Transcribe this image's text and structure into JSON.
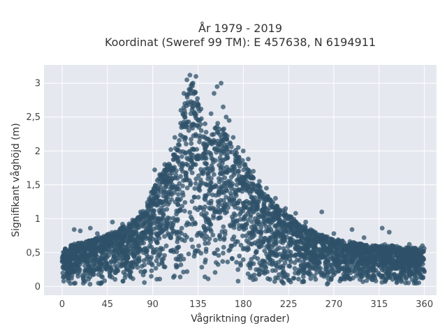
{
  "chart_data": {
    "type": "scatter",
    "title_line1": "År 1979 - 2019",
    "title_line2": "Koordinat (Sweref 99 TM): E 457638, N 6194911",
    "xlabel": "Vågriktning (grader)",
    "ylabel": "Signifikant våghöjd (m)",
    "xlim": [
      -18,
      372
    ],
    "ylim": [
      -0.13,
      3.27
    ],
    "xticks": [
      0,
      45,
      90,
      135,
      180,
      225,
      270,
      315,
      360
    ],
    "xtick_labels": [
      "0",
      "45",
      "90",
      "135",
      "180",
      "225",
      "270",
      "315",
      "360"
    ],
    "yticks": [
      0,
      0.5,
      1,
      1.5,
      2,
      2.5,
      3
    ],
    "ytick_labels": [
      "0",
      "0,5",
      "1",
      "1,5",
      "2",
      "2,5",
      "3"
    ],
    "grid": true,
    "plot_bgcolor": "#e5e8ef",
    "marker_color": "#2f5269",
    "envelope": {
      "x": [
        0,
        10,
        20,
        30,
        40,
        50,
        60,
        70,
        80,
        90,
        100,
        110,
        115,
        120,
        125,
        130,
        135,
        140,
        145,
        150,
        155,
        160,
        170,
        180,
        190,
        200,
        210,
        220,
        230,
        240,
        250,
        260,
        270,
        280,
        290,
        300,
        310,
        320,
        330,
        340,
        350,
        360
      ],
      "y_max": [
        0.55,
        0.62,
        0.65,
        0.7,
        0.75,
        0.8,
        0.88,
        0.95,
        1.1,
        1.45,
        1.7,
        1.95,
        2.25,
        2.6,
        2.9,
        3.05,
        2.8,
        2.4,
        2.2,
        2.3,
        2.45,
        2.35,
        2.1,
        1.85,
        1.6,
        1.4,
        1.25,
        1.12,
        1.0,
        0.9,
        0.82,
        0.75,
        0.7,
        0.68,
        0.65,
        0.62,
        0.6,
        0.62,
        0.6,
        0.58,
        0.57,
        0.58
      ],
      "y_min": 0.02
    },
    "points": [
      [
        12,
        0.84
      ],
      [
        18,
        0.82
      ],
      [
        28,
        0.86
      ],
      [
        35,
        0.78
      ],
      [
        50,
        0.95
      ],
      [
        60,
        0.92
      ],
      [
        70,
        0.98
      ],
      [
        78,
        1.1
      ],
      [
        85,
        1.2
      ],
      [
        92,
        1.72
      ],
      [
        97,
        1.65
      ],
      [
        102,
        1.8
      ],
      [
        108,
        2.02
      ],
      [
        112,
        2.2
      ],
      [
        118,
        2.6
      ],
      [
        121,
        2.85
      ],
      [
        124,
        3.05
      ],
      [
        127,
        3.12
      ],
      [
        130,
        3.0
      ],
      [
        133,
        3.1
      ],
      [
        138,
        2.62
      ],
      [
        142,
        2.4
      ],
      [
        148,
        2.55
      ],
      [
        151,
        2.85
      ],
      [
        154,
        2.95
      ],
      [
        158,
        3.0
      ],
      [
        160,
        2.65
      ],
      [
        163,
        2.5
      ],
      [
        166,
        2.45
      ],
      [
        170,
        2.2
      ],
      [
        175,
        2.05
      ],
      [
        180,
        2.0
      ],
      [
        185,
        1.88
      ],
      [
        190,
        1.7
      ],
      [
        196,
        1.55
      ],
      [
        203,
        1.45
      ],
      [
        212,
        1.3
      ],
      [
        222,
        1.15
      ],
      [
        232,
        1.08
      ],
      [
        242,
        0.95
      ],
      [
        258,
        1.1
      ],
      [
        270,
        0.78
      ],
      [
        288,
        0.84
      ],
      [
        300,
        0.72
      ],
      [
        318,
        0.86
      ],
      [
        325,
        0.8
      ],
      [
        345,
        0.62
      ],
      [
        358,
        0.6
      ]
    ]
  }
}
